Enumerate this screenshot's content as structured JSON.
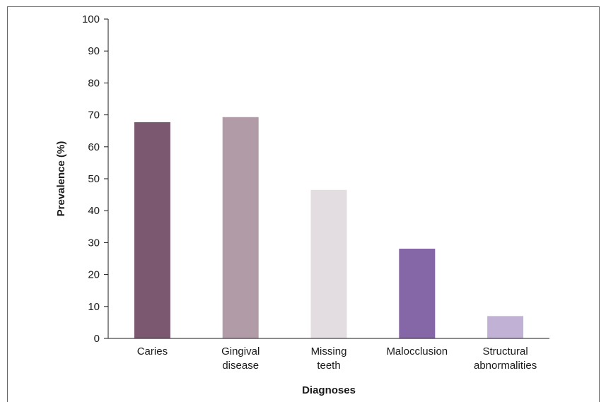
{
  "chart_data": {
    "type": "bar",
    "title": "",
    "xlabel": "Diagnoses",
    "ylabel": "Prevalence (%)",
    "ylim": [
      0,
      100
    ],
    "yticks": [
      0,
      10,
      20,
      30,
      40,
      50,
      60,
      70,
      80,
      90,
      100
    ],
    "grid": false,
    "categories": [
      [
        "Caries"
      ],
      [
        "Gingival",
        "disease"
      ],
      [
        "Missing",
        "teeth"
      ],
      [
        "Malocclusion"
      ],
      [
        "Structural",
        "abnormalities"
      ]
    ],
    "values": [
      67.7,
      69.3,
      46.5,
      28.1,
      7.0
    ],
    "colors": [
      "#7b5870",
      "#b09ba7",
      "#e3dde1",
      "#8566a6",
      "#c1b2d5"
    ]
  }
}
